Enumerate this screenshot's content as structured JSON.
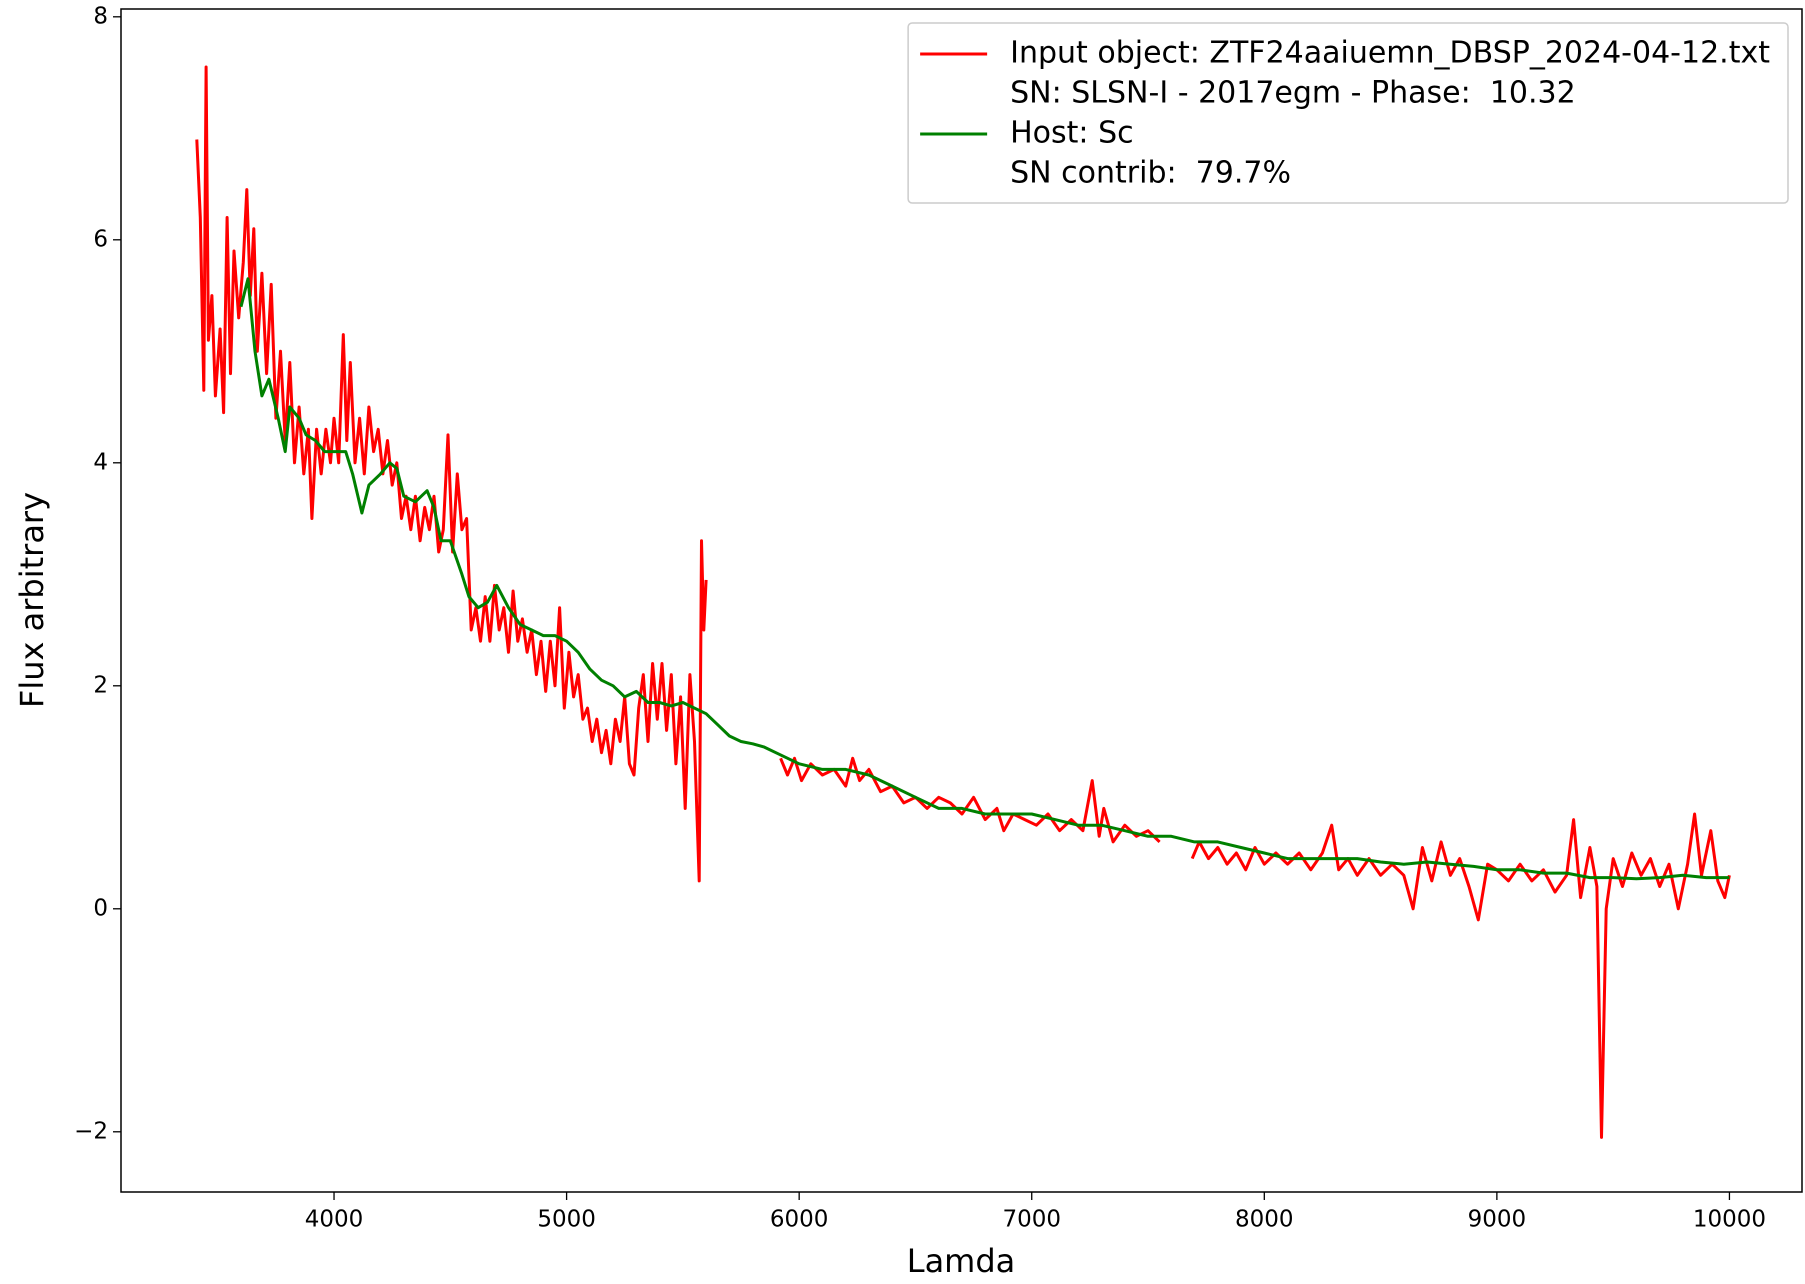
{
  "chart_data": {
    "type": "line",
    "xlabel": "Lamda",
    "ylabel": "Flux arbitrary",
    "xlim": [
      3084,
      10312
    ],
    "ylim": [
      -2.54,
      8.07
    ],
    "xticks": [
      4000,
      5000,
      6000,
      7000,
      8000,
      9000,
      10000
    ],
    "yticks": [
      {
        "value": -2,
        "label": "−2"
      },
      0,
      2,
      4,
      6,
      8
    ],
    "legend": "upper right",
    "legend_notes": [
      "SN: SLSN-I - 2017egm - Phase:  10.32",
      "SN contrib:  79.7%"
    ],
    "series": [
      {
        "name": "Input object: ZTF24aaiuemn_DBSP_2024-04-12.txt",
        "color": "#ff0000",
        "x": [
          3410,
          3425,
          3440,
          3450,
          3460,
          3475,
          3490,
          3510,
          3525,
          3540,
          3555,
          3570,
          3590,
          3610,
          3625,
          3640,
          3655,
          3670,
          3690,
          3710,
          3730,
          3750,
          3770,
          3790,
          3810,
          3830,
          3850,
          3870,
          3890,
          3905,
          3925,
          3945,
          3965,
          3985,
          4000,
          4020,
          4040,
          4055,
          4070,
          4090,
          4110,
          4130,
          4150,
          4170,
          4190,
          4210,
          4230,
          4250,
          4270,
          4290,
          4310,
          4330,
          4350,
          4370,
          4390,
          4410,
          4430,
          4450,
          4470,
          4490,
          4510,
          4530,
          4550,
          4570,
          4590,
          4610,
          4630,
          4650,
          4670,
          4690,
          4710,
          4730,
          4750,
          4770,
          4790,
          4810,
          4830,
          4850,
          4870,
          4890,
          4910,
          4930,
          4950,
          4970,
          4990,
          5010,
          5030,
          5050,
          5070,
          5090,
          5110,
          5130,
          5150,
          5170,
          5190,
          5210,
          5230,
          5250,
          5270,
          5290,
          5310,
          5330,
          5350,
          5370,
          5390,
          5410,
          5430,
          5450,
          5470,
          5490,
          5510,
          5530,
          5550,
          5570,
          5580,
          5590,
          5600,
          5760,
          5920,
          5950,
          5980,
          6010,
          6050,
          6100,
          6150,
          6200,
          6230,
          6260,
          6300,
          6350,
          6400,
          6450,
          6500,
          6550,
          6600,
          6650,
          6700,
          6750,
          6800,
          6850,
          6880,
          6920,
          6970,
          7020,
          7070,
          7120,
          7170,
          7220,
          7260,
          7290,
          7310,
          7350,
          7400,
          7450,
          7500,
          7550,
          7620,
          7690,
          7720,
          7760,
          7800,
          7840,
          7880,
          7920,
          7960,
          8000,
          8050,
          8100,
          8150,
          8200,
          8250,
          8290,
          8320,
          8360,
          8400,
          8450,
          8500,
          8550,
          8600,
          8640,
          8680,
          8720,
          8760,
          8800,
          8840,
          8880,
          8920,
          8960,
          9000,
          9050,
          9100,
          9150,
          9200,
          9250,
          9300,
          9330,
          9360,
          9400,
          9430,
          9450,
          9470,
          9500,
          9540,
          9580,
          9620,
          9660,
          9700,
          9740,
          9780,
          9820,
          9850,
          9880,
          9920,
          9950,
          9980,
          10000
        ],
        "values": [
          6.9,
          6.2,
          4.65,
          7.55,
          5.1,
          5.5,
          4.6,
          5.2,
          4.45,
          6.2,
          4.8,
          5.9,
          5.3,
          5.8,
          6.45,
          5.5,
          6.1,
          5.0,
          5.7,
          4.8,
          5.6,
          4.4,
          5.0,
          4.2,
          4.9,
          4.0,
          4.5,
          3.9,
          4.3,
          3.5,
          4.3,
          3.9,
          4.3,
          4.0,
          4.4,
          4.0,
          5.15,
          4.2,
          4.9,
          4.0,
          4.4,
          3.9,
          4.5,
          4.1,
          4.3,
          3.9,
          4.2,
          3.8,
          4.0,
          3.5,
          3.7,
          3.4,
          3.7,
          3.3,
          3.6,
          3.4,
          3.7,
          3.2,
          3.4,
          4.25,
          3.2,
          3.9,
          3.4,
          3.5,
          2.5,
          2.7,
          2.4,
          2.8,
          2.4,
          2.9,
          2.5,
          2.7,
          2.3,
          2.85,
          2.4,
          2.6,
          2.3,
          2.5,
          2.1,
          2.4,
          1.95,
          2.4,
          2.0,
          2.7,
          1.8,
          2.3,
          1.9,
          2.1,
          1.7,
          1.8,
          1.5,
          1.7,
          1.4,
          1.6,
          1.3,
          1.7,
          1.5,
          1.9,
          1.3,
          1.2,
          1.8,
          2.1,
          1.5,
          2.2,
          1.7,
          2.2,
          1.6,
          2.1,
          1.3,
          1.9,
          0.9,
          2.1,
          1.5,
          0.25,
          3.3,
          2.5,
          2.95,
          null,
          1.35,
          1.2,
          1.35,
          1.15,
          1.3,
          1.2,
          1.25,
          1.1,
          1.35,
          1.15,
          1.25,
          1.05,
          1.1,
          0.95,
          1.0,
          0.9,
          1.0,
          0.95,
          0.85,
          1.0,
          0.8,
          0.9,
          0.7,
          0.85,
          0.8,
          0.75,
          0.85,
          0.7,
          0.8,
          0.7,
          1.15,
          0.65,
          0.9,
          0.6,
          0.75,
          0.65,
          0.7,
          0.6,
          null,
          0.45,
          0.6,
          0.45,
          0.55,
          0.4,
          0.5,
          0.35,
          0.55,
          0.4,
          0.5,
          0.4,
          0.5,
          0.35,
          0.5,
          0.75,
          0.35,
          0.45,
          0.3,
          0.45,
          0.3,
          0.4,
          0.3,
          0.0,
          0.55,
          0.25,
          0.6,
          0.3,
          0.45,
          0.2,
          -0.1,
          0.4,
          0.35,
          0.25,
          0.4,
          0.25,
          0.35,
          0.15,
          0.3,
          0.8,
          0.1,
          0.55,
          0.2,
          -2.05,
          0.0,
          0.45,
          0.2,
          0.5,
          0.3,
          0.45,
          0.2,
          0.4,
          0.0,
          0.4,
          0.85,
          0.3,
          0.7,
          0.25,
          0.1,
          0.3
        ]
      },
      {
        "name": "Host: Sc",
        "color": "#008000",
        "x": [
          3600,
          3630,
          3660,
          3690,
          3720,
          3760,
          3790,
          3810,
          3850,
          3880,
          3920,
          3960,
          4000,
          4050,
          4080,
          4120,
          4150,
          4200,
          4240,
          4270,
          4300,
          4350,
          4400,
          4430,
          4460,
          4500,
          4550,
          4580,
          4620,
          4660,
          4700,
          4750,
          4800,
          4850,
          4900,
          4950,
          5000,
          5050,
          5100,
          5150,
          5200,
          5250,
          5300,
          5350,
          5400,
          5450,
          5500,
          5550,
          5600,
          5650,
          5700,
          5750,
          5800,
          5850,
          5900,
          6000,
          6100,
          6200,
          6300,
          6400,
          6500,
          6600,
          6700,
          6800,
          6900,
          7000,
          7100,
          7200,
          7300,
          7400,
          7500,
          7600,
          7700,
          7800,
          7900,
          8000,
          8100,
          8200,
          8300,
          8400,
          8500,
          8600,
          8700,
          8800,
          8900,
          9000,
          9100,
          9200,
          9300,
          9400,
          9500,
          9600,
          9700,
          9800,
          9900,
          10000
        ],
        "values": [
          5.4,
          5.65,
          5.0,
          4.6,
          4.75,
          4.4,
          4.1,
          4.5,
          4.4,
          4.25,
          4.2,
          4.1,
          4.1,
          4.1,
          3.9,
          3.55,
          3.8,
          3.9,
          4.0,
          3.95,
          3.7,
          3.65,
          3.75,
          3.6,
          3.3,
          3.3,
          3.0,
          2.8,
          2.7,
          2.75,
          2.9,
          2.7,
          2.55,
          2.5,
          2.45,
          2.45,
          2.4,
          2.3,
          2.15,
          2.05,
          2.0,
          1.9,
          1.95,
          1.85,
          1.85,
          1.82,
          1.85,
          1.8,
          1.75,
          1.65,
          1.55,
          1.5,
          1.48,
          1.45,
          1.4,
          1.3,
          1.25,
          1.25,
          1.2,
          1.1,
          1.0,
          0.9,
          0.9,
          0.85,
          0.85,
          0.85,
          0.8,
          0.75,
          0.75,
          0.7,
          0.65,
          0.65,
          0.6,
          0.6,
          0.55,
          0.5,
          0.45,
          0.45,
          0.45,
          0.45,
          0.42,
          0.4,
          0.42,
          0.4,
          0.38,
          0.35,
          0.35,
          0.32,
          0.32,
          0.28,
          0.28,
          0.27,
          0.28,
          0.3,
          0.28,
          0.28
        ]
      }
    ]
  }
}
